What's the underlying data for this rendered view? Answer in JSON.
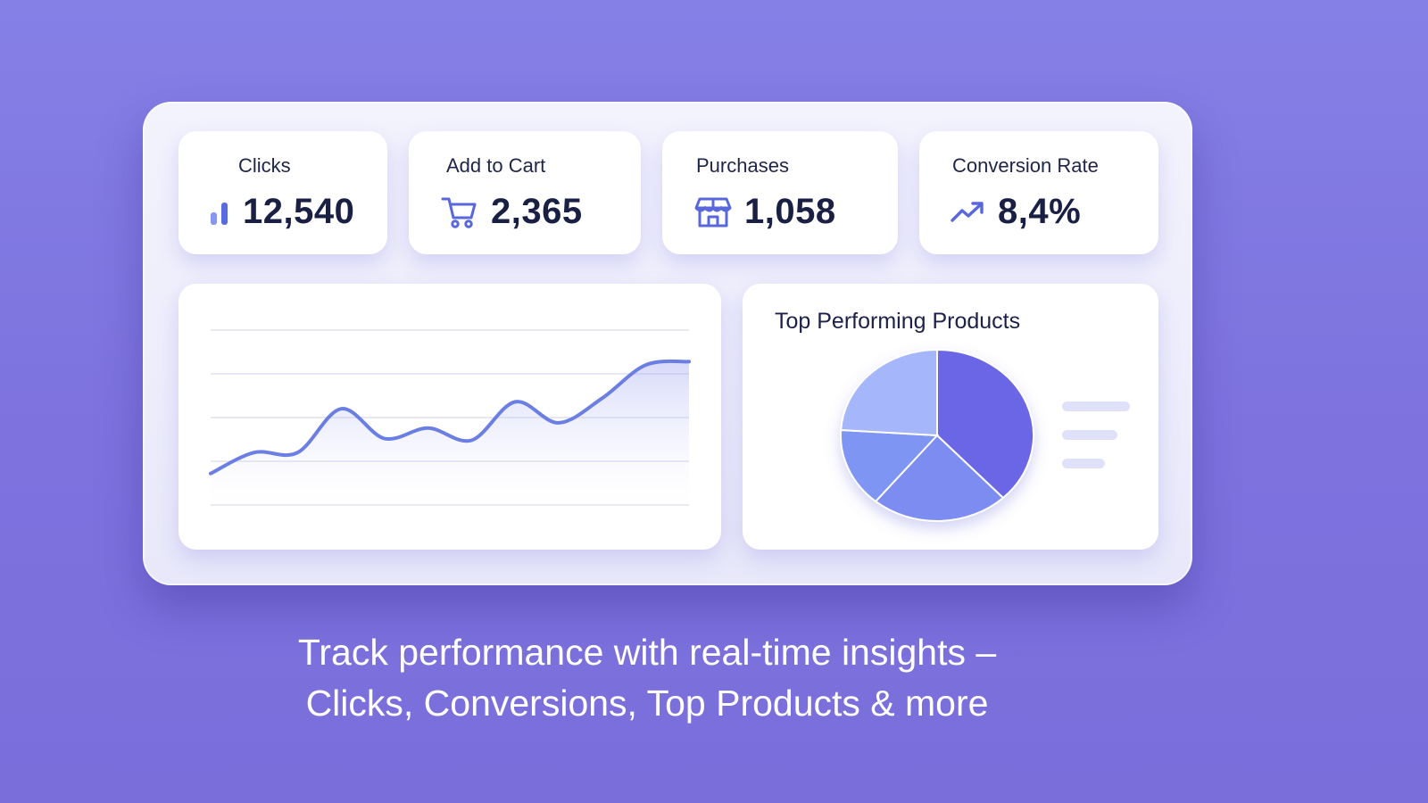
{
  "kpis": [
    {
      "label": "Clicks",
      "value": "12,540",
      "icon": "bar-chart-icon"
    },
    {
      "label": "Add to Cart",
      "value": "2,365",
      "icon": "cart-icon"
    },
    {
      "label": "Purchases",
      "value": "1,058",
      "icon": "store-icon"
    },
    {
      "label": "Conversion Rate",
      "value": "8,4%",
      "icon": "trend-up-icon"
    }
  ],
  "colors": {
    "background": "#8580e6",
    "accent": "#6c6de8",
    "line": "#6b7ee4",
    "pie": [
      "#6a66e6",
      "#7b8cf0",
      "#7e95f3",
      "#a5b6fb"
    ]
  },
  "line_chart": {
    "title": "",
    "chart_data": {
      "type": "line",
      "x": [
        0,
        1,
        2,
        3,
        4,
        5,
        6,
        7,
        8,
        9,
        10,
        11
      ],
      "series": [
        {
          "values": [
            18,
            30,
            30,
            55,
            38,
            44,
            37,
            59,
            47,
            61,
            80,
            82
          ]
        }
      ],
      "ylim": [
        0,
        100
      ],
      "grid": true
    }
  },
  "pie_chart": {
    "title": "Top Performing Products",
    "chart_data": {
      "type": "pie",
      "values": [
        38,
        23,
        15,
        24
      ],
      "legend": "right"
    }
  },
  "caption": {
    "line1": "Track performance with real-time insights –",
    "line2": "Clicks, Conversions, Top Products & more"
  }
}
